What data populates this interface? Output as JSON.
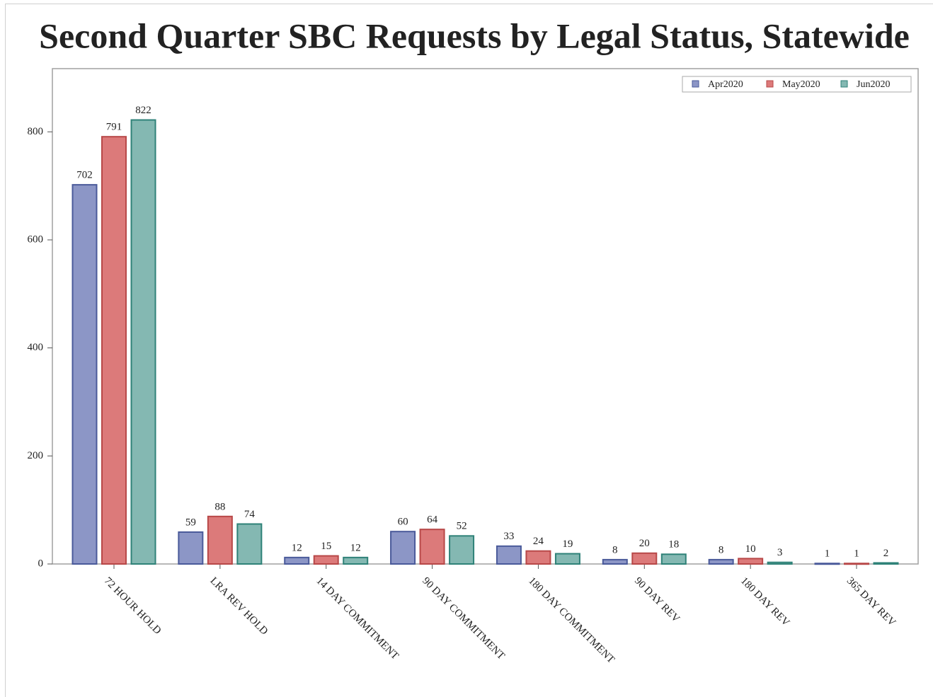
{
  "chart_data": {
    "type": "bar",
    "title": "Second Quarter SBC Requests by Legal Status, Statewide",
    "categories": [
      "72 HOUR HOLD",
      "LRA REV HOLD",
      "14 DAY COMMITMENT",
      "90 DAY COMMITMENT",
      "180 DAY COMMITMENT",
      "90 DAY REV",
      "180 DAY REV",
      "365 DAY REV"
    ],
    "series": [
      {
        "name": "Apr2020",
        "color": "#8c96c6",
        "values": [
          702,
          59,
          12,
          60,
          33,
          8,
          8,
          1
        ]
      },
      {
        "name": "May2020",
        "color": "#dc7a7a",
        "values": [
          791,
          88,
          15,
          64,
          24,
          20,
          10,
          1
        ]
      },
      {
        "name": "Jun2020",
        "color": "#84b8b2",
        "values": [
          822,
          74,
          12,
          52,
          19,
          18,
          3,
          2
        ]
      }
    ],
    "ylim": [
      0,
      917
    ],
    "yticks": [
      0,
      200,
      400,
      600,
      800
    ],
    "legend": "upper right"
  }
}
